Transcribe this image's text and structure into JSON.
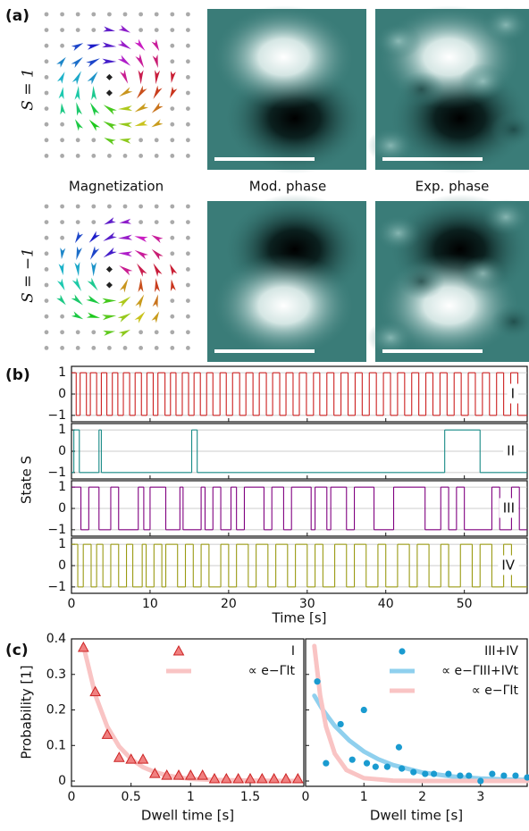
{
  "panel_a": {
    "label": "(a)",
    "row_labels": [
      "S = 1",
      "S = −1"
    ],
    "column_labels": [
      "Magnetization",
      "Mod. phase",
      "Exp. phase"
    ]
  },
  "chart_data": [
    {
      "type": "line",
      "step": true,
      "panel_label": "(b)",
      "ylabel": "State S",
      "label": "I",
      "color": "#cc1f1f",
      "x": [
        0,
        0.6,
        1.1,
        1.9,
        2.4,
        3.2,
        3.8,
        4.5,
        5.2,
        5.9,
        6.6,
        7.4,
        8.1,
        8.9,
        9.6,
        10.4,
        11.0,
        11.9,
        12.6,
        13.3,
        14.1,
        14.9,
        15.6,
        16.4,
        17.2,
        18.0,
        18.9,
        19.7,
        20.5,
        21.4,
        22.2,
        23.1,
        23.9,
        24.8,
        25.6,
        26.5,
        27.3,
        28.2,
        29.0,
        29.9,
        30.8,
        31.6,
        32.5,
        33.4,
        34.3,
        35.2,
        36.1,
        37.0,
        37.9,
        38.8,
        39.7,
        40.6,
        41.5,
        42.4,
        43.3,
        44.2,
        45.1,
        46.0,
        46.9,
        47.8,
        48.7,
        49.6,
        50.5,
        51.4,
        52.3,
        53.2,
        54.1,
        55.0,
        55.9,
        56.8
      ],
      "values": [
        1,
        -1,
        1,
        -1,
        1,
        -1,
        1,
        -1,
        1,
        -1,
        1,
        -1,
        1,
        -1,
        1,
        -1,
        1,
        -1,
        1,
        -1,
        1,
        -1,
        1,
        -1,
        1,
        -1,
        1,
        -1,
        1,
        -1,
        1,
        -1,
        1,
        -1,
        1,
        -1,
        1,
        -1,
        1,
        -1,
        1,
        -1,
        1,
        -1,
        1,
        -1,
        1,
        -1,
        1,
        -1,
        1,
        -1,
        1,
        -1,
        1,
        -1,
        1,
        -1,
        1,
        -1,
        1,
        -1,
        1,
        -1,
        1,
        -1,
        1,
        -1,
        1,
        -1
      ],
      "xlim": [
        0,
        58
      ],
      "ylim": [
        -1.3,
        1.3
      ],
      "xticks": [
        0,
        10,
        20,
        30,
        40,
        50
      ],
      "xtick_labels": false,
      "yticks": [
        1,
        0,
        {
          "value": -1,
          "label": "−1"
        }
      ],
      "grid": true
    },
    {
      "type": "line",
      "step": true,
      "label": "II",
      "color": "#178a86",
      "x": [
        0,
        0.3,
        1.0,
        3.5,
        3.8,
        15.3,
        16.0,
        47.5,
        52.0
      ],
      "values": [
        -1,
        1,
        -1,
        1,
        -1,
        1,
        -1,
        1,
        -1
      ],
      "xlim": [
        0,
        58
      ],
      "ylim": [
        -1.3,
        1.3
      ],
      "xticks": [
        0,
        10,
        20,
        30,
        40,
        50
      ],
      "xtick_labels": false,
      "yticks": [
        1,
        0,
        {
          "value": -1,
          "label": "−1"
        }
      ],
      "grid": true
    },
    {
      "type": "line",
      "step": true,
      "label": "III",
      "color": "#800080",
      "x": [
        0,
        1.2,
        2.2,
        3.5,
        5,
        6,
        8.5,
        9.2,
        10,
        12,
        13.8,
        14.2,
        16.5,
        17,
        18,
        19,
        20.3,
        21,
        22,
        24.5,
        25.5,
        27,
        28,
        30.5,
        31,
        32.5,
        33,
        35,
        36,
        38.5,
        41,
        45,
        47,
        48,
        49,
        50,
        53.5,
        54.5,
        56,
        57
      ],
      "values": [
        1,
        -1,
        1,
        -1,
        1,
        -1,
        1,
        -1,
        1,
        -1,
        1,
        -1,
        1,
        -1,
        1,
        -1,
        1,
        -1,
        1,
        -1,
        1,
        -1,
        1,
        -1,
        1,
        -1,
        1,
        -1,
        1,
        -1,
        1,
        -1,
        1,
        -1,
        1,
        -1,
        1,
        -1,
        1,
        -1
      ],
      "xlim": [
        0,
        58
      ],
      "ylim": [
        -1.3,
        1.3
      ],
      "xticks": [
        0,
        10,
        20,
        30,
        40,
        50
      ],
      "xtick_labels": false,
      "yticks": [
        1,
        0,
        {
          "value": -1,
          "label": "−1"
        }
      ],
      "grid": true
    },
    {
      "type": "line",
      "step": true,
      "label": "IV",
      "color": "#9a9a12",
      "xlabel": "Time [s]",
      "x": [
        0,
        0.8,
        1.5,
        2.5,
        3.2,
        4,
        5,
        6,
        7,
        7.8,
        9,
        9.5,
        10.5,
        11.5,
        12,
        13.5,
        14.5,
        15.5,
        16.5,
        17.5,
        19,
        20,
        21,
        22.5,
        23.5,
        25,
        26,
        27.5,
        28.5,
        30,
        31,
        32,
        33.5,
        35,
        36,
        37.5,
        39,
        40,
        41.5,
        43,
        44,
        45.5,
        47,
        48,
        49.5,
        51,
        52,
        53.5,
        55,
        56
      ],
      "values": [
        1,
        -1,
        1,
        -1,
        1,
        -1,
        1,
        -1,
        1,
        -1,
        1,
        -1,
        1,
        -1,
        1,
        -1,
        1,
        -1,
        1,
        -1,
        1,
        -1,
        1,
        -1,
        1,
        -1,
        1,
        -1,
        1,
        -1,
        1,
        -1,
        1,
        -1,
        1,
        -1,
        1,
        -1,
        1,
        -1,
        1,
        -1,
        1,
        -1,
        1,
        -1,
        1,
        -1,
        1,
        -1
      ],
      "xlim": [
        0,
        58
      ],
      "ylim": [
        -1.3,
        1.3
      ],
      "xticks": [
        0,
        10,
        20,
        30,
        40,
        50
      ],
      "yticks": [
        1,
        0,
        {
          "value": -1,
          "label": "−1"
        }
      ],
      "grid": true
    },
    {
      "type": "scatter",
      "panel_label": "(c)",
      "ylabel": "Probability [1]",
      "xlabel": "Dwell time [s]",
      "legend": "upper right",
      "xlim": [
        0,
        1.95
      ],
      "ylim": [
        -0.015,
        0.4
      ],
      "xticks": [
        0,
        0.5,
        1,
        1.5
      ],
      "yticks": [
        0,
        0.1,
        0.2,
        0.3,
        0.4
      ],
      "series": [
        {
          "name": "I",
          "kind": "points",
          "marker": "triangle",
          "color": "#f08080",
          "x": [
            0.1,
            0.2,
            0.3,
            0.4,
            0.5,
            0.6,
            0.7,
            0.8,
            0.9,
            1.0,
            1.1,
            1.2,
            1.3,
            1.4,
            1.5,
            1.6,
            1.7,
            1.8,
            1.9
          ],
          "values": [
            0.375,
            0.25,
            0.13,
            0.065,
            0.06,
            0.06,
            0.02,
            0.015,
            0.015,
            0.015,
            0.015,
            0.005,
            0.005,
            0.005,
            0.005,
            0.005,
            0.005,
            0.005,
            0.005
          ]
        },
        {
          "name": "∝ e−ΓIt",
          "kind": "line",
          "color": "#f9c4c4",
          "x": [
            0.1,
            0.2,
            0.3,
            0.4,
            0.5,
            0.6,
            0.7,
            0.8,
            0.9,
            1.0,
            1.2,
            1.5,
            1.9
          ],
          "values": [
            0.381,
            0.242,
            0.153,
            0.097,
            0.062,
            0.039,
            0.025,
            0.016,
            0.01,
            0.006,
            0.003,
            0.001,
            0.0
          ]
        }
      ]
    },
    {
      "type": "scatter",
      "xlabel": "Dwell time [s]",
      "legend": "upper right",
      "ytick_labels": false,
      "xlim": [
        0,
        3.8
      ],
      "ylim": [
        -0.015,
        0.4
      ],
      "xticks": [
        0,
        1,
        2,
        3
      ],
      "yticks": [
        0,
        0.1,
        0.2,
        0.3,
        0.4
      ],
      "series": [
        {
          "name": "III+IV",
          "kind": "points",
          "marker": "circle",
          "color": "#1a9bd0",
          "x": [
            0.2,
            0.35,
            0.6,
            0.8,
            1.0,
            1.05,
            1.2,
            1.4,
            1.6,
            1.65,
            1.85,
            2.05,
            2.2,
            2.45,
            2.65,
            2.8,
            3.0,
            3.2,
            3.4,
            3.6,
            3.8
          ],
          "values": [
            0.28,
            0.05,
            0.16,
            0.06,
            0.2,
            0.05,
            0.04,
            0.04,
            0.095,
            0.035,
            0.025,
            0.02,
            0.02,
            0.02,
            0.015,
            0.015,
            0.0,
            0.02,
            0.015,
            0.015,
            0.01
          ]
        },
        {
          "name": "∝ e−ΓIII+IVt",
          "kind": "line",
          "color": "#8fd0ee",
          "x": [
            0.15,
            0.3,
            0.5,
            0.75,
            1,
            1.25,
            1.5,
            2,
            2.5,
            3,
            3.5,
            3.8
          ],
          "values": [
            0.24,
            0.199,
            0.155,
            0.114,
            0.083,
            0.061,
            0.045,
            0.024,
            0.013,
            0.007,
            0.004,
            0.003
          ]
        },
        {
          "name": "∝ e−ΓIt",
          "kind": "line",
          "color": "#f9c4c4",
          "x": [
            0.15,
            0.25,
            0.35,
            0.5,
            0.7,
            1,
            1.5,
            2,
            3,
            3.8
          ],
          "values": [
            0.38,
            0.24,
            0.153,
            0.077,
            0.031,
            0.008,
            0.001,
            0.0,
            0.0,
            0.0
          ]
        }
      ]
    }
  ]
}
